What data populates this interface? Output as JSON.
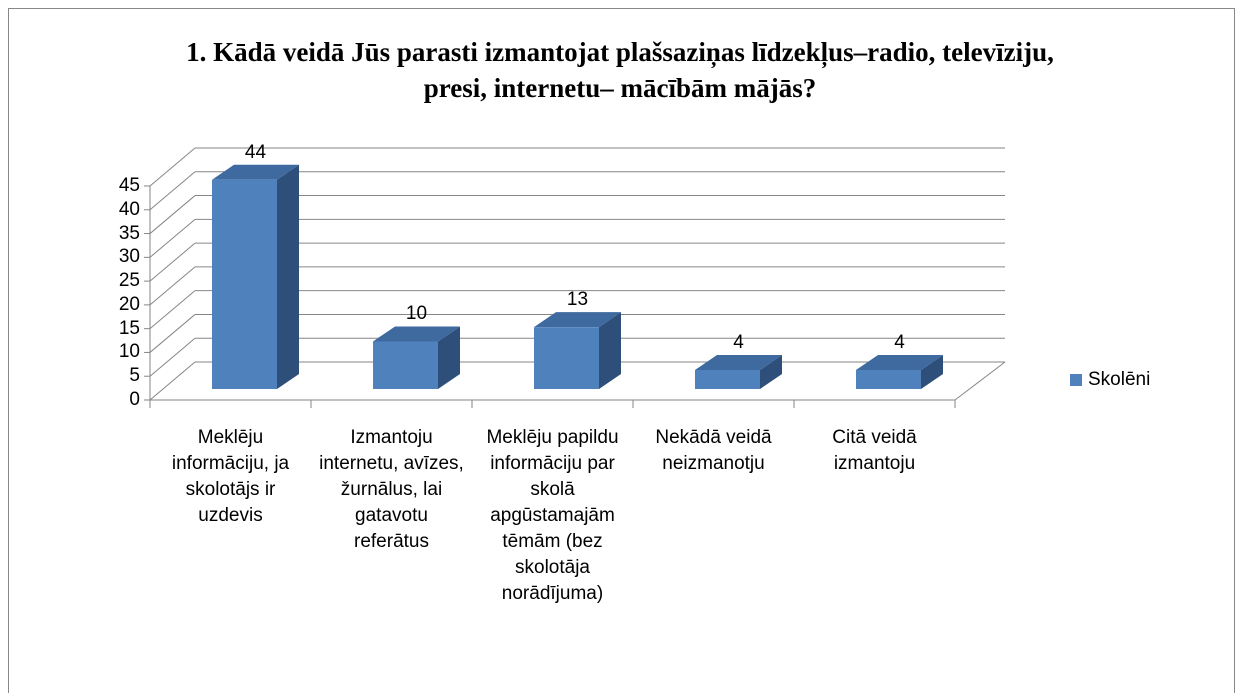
{
  "chart_data": {
    "type": "bar3d",
    "title": "1. Kādā veidā Jūs parasti izmantojat plašsaziņas līdzekļus–radio, televīziju, presi, internetu– mācībām mājās?",
    "categories": [
      "Meklēju informāciju, ja skolotājs ir uzdevis",
      "Izmantoju internetu, avīzes, žurnālus, lai gatavotu referātus",
      "Meklēju papildu informāciju par skolā apgūstamajām tēmām (bez skolotāja norādījuma)",
      "Nekādā veidā neizmanotju",
      "Citā veidā izmantoju"
    ],
    "series": [
      {
        "name": "Skolēni",
        "color": "#4f81bd",
        "values": [
          44,
          10,
          13,
          4,
          4
        ]
      }
    ],
    "ylim": [
      0,
      45
    ],
    "yticks": [
      0,
      5,
      10,
      15,
      20,
      25,
      30,
      35,
      40,
      45
    ],
    "grid": true,
    "legend": "right"
  }
}
